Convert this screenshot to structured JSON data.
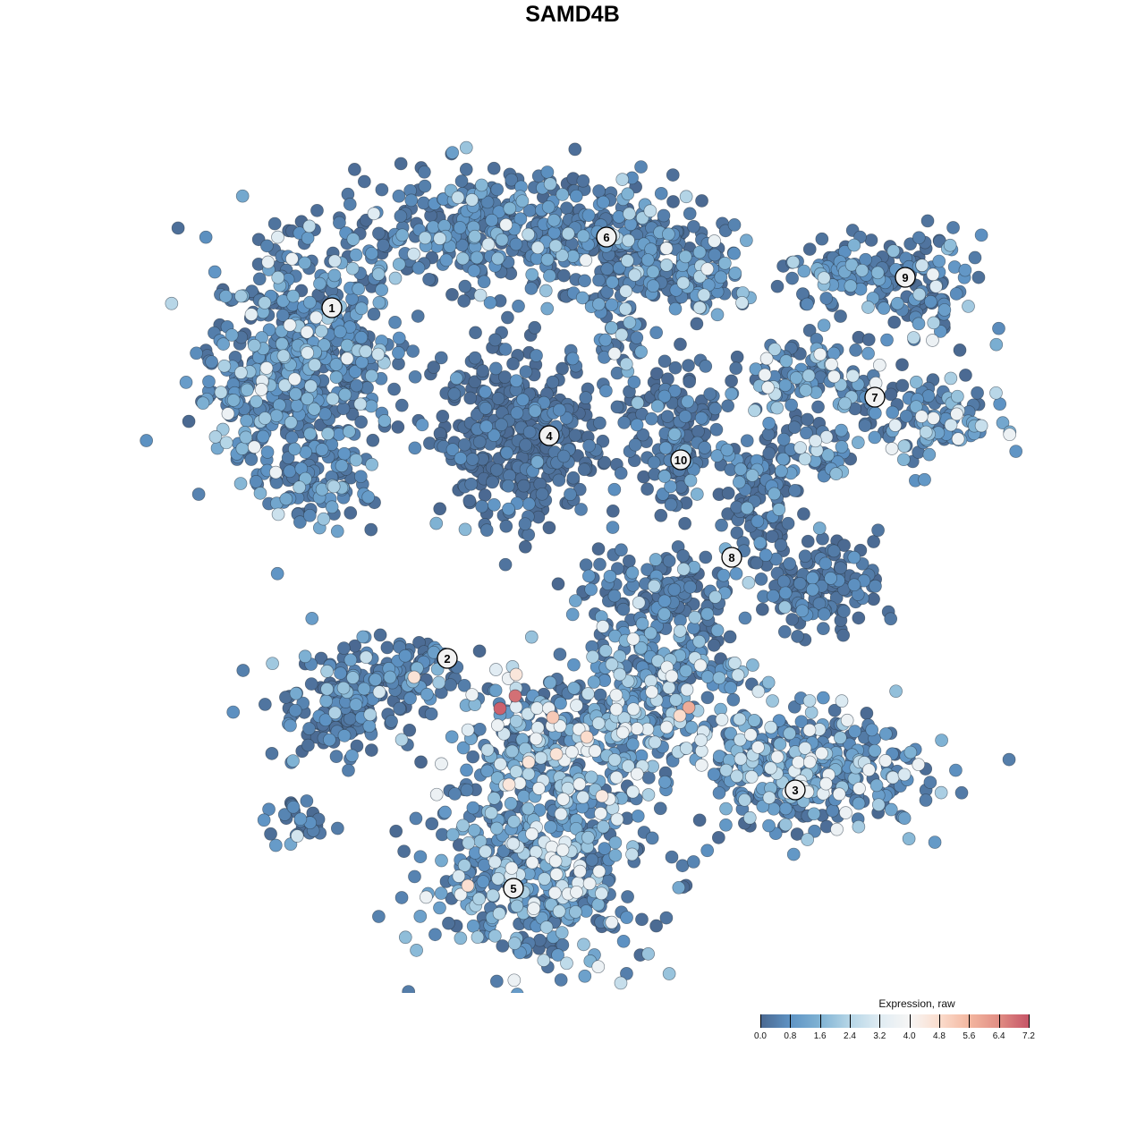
{
  "chart_data": {
    "type": "scatter",
    "title": "SAMD4B",
    "xlabel": "",
    "ylabel": "",
    "axes_visible": false,
    "grid": false,
    "xlim": [
      -45,
      50
    ],
    "ylim": [
      -46,
      46
    ],
    "note_points": "embedding points summarized per cluster; individual highlighted high-expression points listed",
    "clusters": [
      {
        "label": "1",
        "label_pos": [
          -26.9,
          29.6
        ],
        "mean_expr": 1.2,
        "blobs": [
          [
            -30,
            24,
            6.5,
            7.5,
            520
          ],
          [
            -29,
            10,
            4,
            3,
            90
          ],
          [
            -36,
            20,
            3,
            4,
            60
          ]
        ]
      },
      {
        "label": "6",
        "label_pos": [
          3.8,
          37.5
        ],
        "mean_expr": 1.0,
        "blobs": [
          [
            -8,
            38,
            12,
            4,
            420
          ],
          [
            8,
            36,
            6,
            4,
            160
          ],
          [
            14,
            32,
            4,
            3,
            60
          ],
          [
            5,
            27,
            2,
            3,
            40
          ]
        ]
      },
      {
        "label": "4",
        "label_pos": [
          -2.6,
          15.3
        ],
        "mean_expr": 0.3,
        "blobs": [
          [
            -6,
            15,
            5.5,
            6,
            380
          ]
        ]
      },
      {
        "label": "10",
        "label_pos": [
          12.1,
          12.6
        ],
        "mean_expr": 0.5,
        "blobs": [
          [
            11,
            17,
            4,
            4,
            100
          ],
          [
            12,
            12,
            2,
            3,
            40
          ]
        ]
      },
      {
        "label": "9",
        "label_pos": [
          37.2,
          33
        ],
        "mean_expr": 1.1,
        "blobs": [
          [
            33,
            33,
            6,
            2.5,
            130
          ],
          [
            41,
            31,
            2.5,
            4,
            50
          ]
        ]
      },
      {
        "label": "7",
        "label_pos": [
          33.8,
          19.6
        ],
        "mean_expr": 1.5,
        "blobs": [
          [
            26,
            22,
            6,
            3,
            130
          ],
          [
            40,
            17,
            5,
            3,
            110
          ],
          [
            27,
            13,
            3,
            2,
            40
          ]
        ]
      },
      {
        "label": "8",
        "label_pos": [
          17.8,
          1.7
        ],
        "mean_expr": 0.6,
        "blobs": [
          [
            21,
            9,
            2.5,
            4.5,
            110
          ],
          [
            28,
            -1,
            4,
            3,
            130
          ],
          [
            10,
            -2,
            6,
            3,
            130
          ]
        ]
      },
      {
        "label": "2",
        "label_pos": [
          -14,
          -9.6
        ],
        "mean_expr": 0.8,
        "blobs": [
          [
            -22,
            -12,
            6,
            3,
            160
          ],
          [
            -26,
            -16,
            4,
            3,
            90
          ],
          [
            -30,
            -28,
            3,
            1.8,
            30
          ]
        ]
      },
      {
        "label": "3",
        "label_pos": [
          24.9,
          -24.3
        ],
        "mean_expr": 1.8,
        "blobs": [
          [
            26,
            -22,
            8,
            4,
            380
          ],
          [
            10,
            -12,
            6,
            5,
            260
          ]
        ]
      },
      {
        "label": "5",
        "label_pos": [
          -6.6,
          -35.3
        ],
        "mean_expr": 1.9,
        "blobs": [
          [
            -4,
            -34,
            8,
            6,
            460
          ],
          [
            -2,
            -20,
            7,
            5,
            320
          ]
        ]
      }
    ],
    "highlighted_points": [
      {
        "x": -6.4,
        "y": -13.8,
        "expr": 6.8
      },
      {
        "x": -8.1,
        "y": -15.2,
        "expr": 7.0
      },
      {
        "x": 13.0,
        "y": -15.1,
        "expr": 5.8
      },
      {
        "x": -2.2,
        "y": -16.2,
        "expr": 5.2
      },
      {
        "x": 12.0,
        "y": -16.0,
        "expr": 4.8
      },
      {
        "x": -6.3,
        "y": -11.4,
        "expr": 4.5
      },
      {
        "x": -17.7,
        "y": -11.7,
        "expr": 4.6
      },
      {
        "x": -11.7,
        "y": -35.0,
        "expr": 4.7
      },
      {
        "x": 3.3,
        "y": -25.0,
        "expr": 4.4
      },
      {
        "x": -7.1,
        "y": -23.7,
        "expr": 4.5
      },
      {
        "x": -4.9,
        "y": -21.2,
        "expr": 4.5
      },
      {
        "x": -1.8,
        "y": -20.3,
        "expr": 4.6
      },
      {
        "x": 1.6,
        "y": -18.4,
        "expr": 4.8
      }
    ],
    "legend": {
      "title": "Expression, raw",
      "placement": "bottom-right",
      "range": [
        0.0,
        7.2
      ],
      "ticks": [
        "0.0",
        "0.8",
        "1.6",
        "2.4",
        "3.2",
        "4.0",
        "4.8",
        "5.6",
        "6.4",
        "7.2"
      ],
      "colors": [
        "#4a6890",
        "#5e93c4",
        "#80b3d4",
        "#b6d6e7",
        "#e0ecf3",
        "#f7f6f5",
        "#fbdccc",
        "#f3b69f",
        "#e08c83",
        "#c55366"
      ]
    }
  }
}
